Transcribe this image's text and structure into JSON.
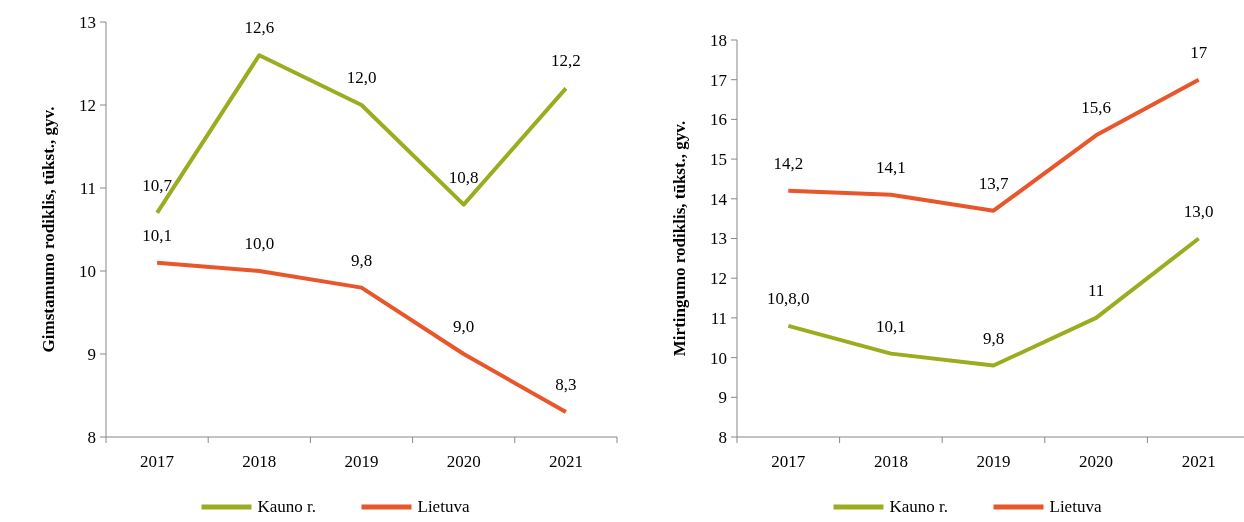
{
  "chart_data": [
    {
      "type": "line",
      "ylabel": "Gimstamumo rodiklis,  tūkst., gyv.",
      "categories": [
        "2017",
        "2018",
        "2019",
        "2020",
        "2021"
      ],
      "ylim": [
        8,
        13
      ],
      "yticks": [
        8,
        9,
        10,
        11,
        12,
        13
      ],
      "legend": "bottom",
      "grid": false,
      "marker": "none",
      "series": [
        {
          "name": "Kauno r.",
          "color": "#9bad1f",
          "values": [
            10.7,
            12.6,
            12.0,
            10.8,
            12.2
          ],
          "value_labels": [
            "10,7",
            "12,6",
            "12,0",
            "10,8",
            "12,2"
          ]
        },
        {
          "name": "Lietuva",
          "color": "#e8562a",
          "values": [
            10.1,
            10.0,
            9.8,
            9.0,
            8.3
          ],
          "value_labels": [
            "10,1",
            "10,0",
            "9,8",
            "9,0",
            "8,3"
          ]
        }
      ]
    },
    {
      "type": "line",
      "ylabel": "Mirtingumo rodiklis,  tūkst., gyv.",
      "categories": [
        "2017",
        "2018",
        "2019",
        "2020",
        "2021"
      ],
      "ylim": [
        8,
        18
      ],
      "yticks": [
        8,
        9,
        10,
        11,
        12,
        13,
        14,
        15,
        16,
        17,
        18
      ],
      "legend": "bottom",
      "grid": false,
      "marker": "none",
      "series": [
        {
          "name": "Kauno r.",
          "color": "#9bad1f",
          "values": [
            10.8,
            10.1,
            9.8,
            11,
            13.0
          ],
          "value_labels": [
            "10,8,0",
            "10,1",
            "9,8",
            "11",
            "13,0"
          ]
        },
        {
          "name": "Lietuva",
          "color": "#e8562a",
          "values": [
            14.2,
            14.1,
            13.7,
            15.6,
            17
          ],
          "value_labels": [
            "14,2",
            "14,1",
            "13,7",
            "15,6",
            "17"
          ]
        }
      ]
    }
  ]
}
